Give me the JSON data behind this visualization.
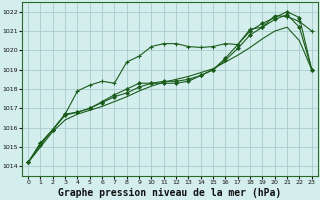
{
  "background_color": "#d4eeee",
  "grid_color": "#aacccc",
  "line_color": "#1a5c1a",
  "xlabel": "Graphe pression niveau de la mer (hPa)",
  "xlabel_fontsize": 7,
  "ylim": [
    1013.5,
    1022.5
  ],
  "yticks": [
    1014,
    1015,
    1016,
    1017,
    1018,
    1019,
    1020,
    1021,
    1022
  ],
  "xlim": [
    -0.5,
    23.5
  ],
  "xticks": [
    0,
    1,
    2,
    3,
    4,
    5,
    6,
    7,
    8,
    9,
    10,
    11,
    12,
    13,
    14,
    15,
    16,
    17,
    18,
    19,
    20,
    21,
    22,
    23
  ],
  "hours": [
    0,
    1,
    2,
    3,
    4,
    5,
    6,
    7,
    8,
    9,
    10,
    11,
    12,
    13,
    14,
    15,
    16,
    17,
    18,
    19,
    20,
    21,
    22,
    23
  ],
  "series1": [
    1014.2,
    1015.2,
    1015.9,
    1016.7,
    1017.9,
    1018.2,
    1018.4,
    1018.3,
    1019.4,
    1019.7,
    1020.2,
    1020.35,
    1020.35,
    1020.2,
    1020.15,
    1020.2,
    1020.35,
    1020.3,
    1021.1,
    1021.2,
    1021.8,
    1021.75,
    1021.5,
    1021.0
  ],
  "series2": [
    1014.2,
    1015.2,
    1015.9,
    1016.7,
    1016.8,
    1017.0,
    1017.35,
    1017.7,
    1018.0,
    1018.3,
    1018.3,
    1018.3,
    1018.3,
    1018.4,
    1018.7,
    1019.0,
    1019.6,
    1020.3,
    1021.0,
    1021.4,
    1021.7,
    1022.0,
    1021.7,
    1019.0
  ],
  "series3": [
    1014.2,
    1015.1,
    1015.9,
    1016.65,
    1016.8,
    1017.0,
    1017.3,
    1017.6,
    1017.8,
    1018.1,
    1018.3,
    1018.4,
    1018.4,
    1018.5,
    1018.7,
    1019.0,
    1019.5,
    1020.1,
    1020.8,
    1021.2,
    1021.6,
    1021.85,
    1021.2,
    1019.0
  ],
  "series4": [
    1014.2,
    1015.0,
    1015.8,
    1016.4,
    1016.7,
    1016.9,
    1017.1,
    1017.35,
    1017.6,
    1017.9,
    1018.15,
    1018.35,
    1018.5,
    1018.65,
    1018.85,
    1019.05,
    1019.4,
    1019.75,
    1020.15,
    1020.6,
    1021.0,
    1021.2,
    1020.5,
    1019.0
  ]
}
